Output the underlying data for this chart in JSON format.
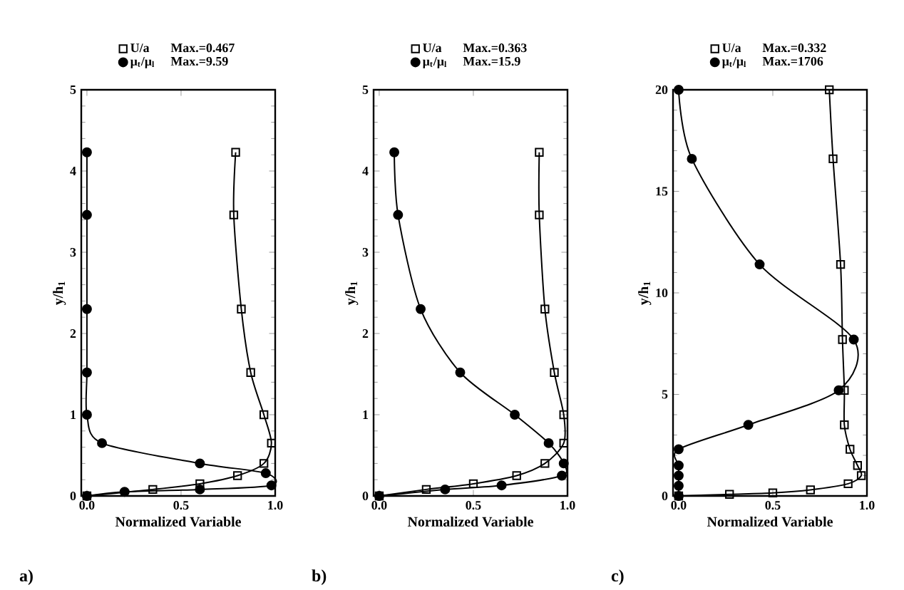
{
  "chart_data": [
    {
      "type": "line",
      "title": "a)",
      "xlabel": "Normalized Variable",
      "ylabel": "y/h$_{1}$",
      "xlim": [
        -0.03,
        1.0
      ],
      "ylim": [
        0,
        5
      ],
      "xticks": [
        {
          "value": 0,
          "label": "0.0"
        },
        {
          "value": 0.5,
          "label": "0.5"
        },
        {
          "value": 1,
          "label": "1.0"
        }
      ],
      "yticks": [
        0,
        1,
        2,
        3,
        4,
        5
      ],
      "legend": "top",
      "annotations": [
        "Max.=0.467",
        "Max.=9.59"
      ],
      "series": [
        {
          "name": "U/a",
          "color": "#000000",
          "marker": "square",
          "x": [
            0.79,
            0.78,
            0.82,
            0.87,
            0.94,
            0.98,
            0.94,
            0.8,
            0.6,
            0.35,
            0
          ],
          "values": [
            4.23,
            3.46,
            2.3,
            1.52,
            1.0,
            0.65,
            0.4,
            0.25,
            0.15,
            0.08,
            0
          ]
        },
        {
          "name": "μ$_{t}$/μ$_{l}$",
          "color": "#000000",
          "marker": "circle",
          "x": [
            0,
            0,
            0,
            0,
            0,
            0.08,
            0.6,
            0.95,
            0.98,
            0.6,
            0.2,
            0
          ],
          "values": [
            4.23,
            3.46,
            2.3,
            1.52,
            1.0,
            0.65,
            0.4,
            0.28,
            0.13,
            0.08,
            0.05,
            0
          ]
        }
      ]
    },
    {
      "type": "line",
      "title": "b)",
      "xlabel": "Normalized Variable",
      "ylabel": "y/h$_{1}$",
      "xlim": [
        -0.03,
        1.0
      ],
      "ylim": [
        0,
        5
      ],
      "xticks": [
        {
          "value": 0,
          "label": "0.0"
        },
        {
          "value": 0.5,
          "label": "0.5"
        },
        {
          "value": 1,
          "label": "1.0"
        }
      ],
      "yticks": [
        0,
        1,
        2,
        3,
        4,
        5
      ],
      "legend": "top",
      "annotations": [
        "Max.=0.363",
        "Max.=15.9"
      ],
      "series": [
        {
          "name": "U/a",
          "color": "#000000",
          "marker": "square",
          "x": [
            0.85,
            0.85,
            0.88,
            0.93,
            0.98,
            0.98,
            0.88,
            0.73,
            0.5,
            0.25,
            0
          ],
          "values": [
            4.23,
            3.46,
            2.3,
            1.52,
            1.0,
            0.65,
            0.4,
            0.25,
            0.15,
            0.08,
            0
          ]
        },
        {
          "name": "μ$_{t}$/μ$_{l}$",
          "color": "#000000",
          "marker": "circle",
          "x": [
            0.08,
            0.1,
            0.22,
            0.43,
            0.72,
            0.9,
            0.98,
            0.97,
            0.65,
            0.35,
            0
          ],
          "values": [
            4.23,
            3.46,
            2.3,
            1.52,
            1.0,
            0.65,
            0.4,
            0.25,
            0.13,
            0.08,
            0
          ]
        }
      ]
    },
    {
      "type": "line",
      "title": "c)",
      "xlabel": "Normalized Variable",
      "ylabel": "y/h$_{1}$",
      "xlim": [
        -0.03,
        1.0
      ],
      "ylim": [
        0,
        20
      ],
      "xticks": [
        {
          "value": 0,
          "label": "0.0"
        },
        {
          "value": 0.5,
          "label": "0.5"
        },
        {
          "value": 1,
          "label": "1.0"
        }
      ],
      "yticks": [
        0,
        5,
        10,
        15,
        20
      ],
      "legend": "top",
      "annotations": [
        "Max.=0.332",
        "Max.=1706"
      ],
      "series": [
        {
          "name": "U/a",
          "color": "#000000",
          "marker": "square",
          "x": [
            0.8,
            0.82,
            0.86,
            0.87,
            0.88,
            0.88,
            0.91,
            0.95,
            0.97,
            0.9,
            0.7,
            0.5,
            0.27,
            0
          ],
          "values": [
            20,
            16.6,
            11.4,
            7.7,
            5.2,
            3.5,
            2.3,
            1.5,
            1.0,
            0.6,
            0.3,
            0.15,
            0.08,
            0
          ]
        },
        {
          "name": "μ$_{t}$/μ$_{l}$",
          "color": "#000000",
          "marker": "circle",
          "x": [
            0,
            0.07,
            0.43,
            0.93,
            0.85,
            0.37,
            0,
            0,
            0,
            0,
            0
          ],
          "values": [
            20,
            16.6,
            11.4,
            7.7,
            5.2,
            3.5,
            2.3,
            1.5,
            1.0,
            0.5,
            0
          ]
        }
      ]
    }
  ]
}
